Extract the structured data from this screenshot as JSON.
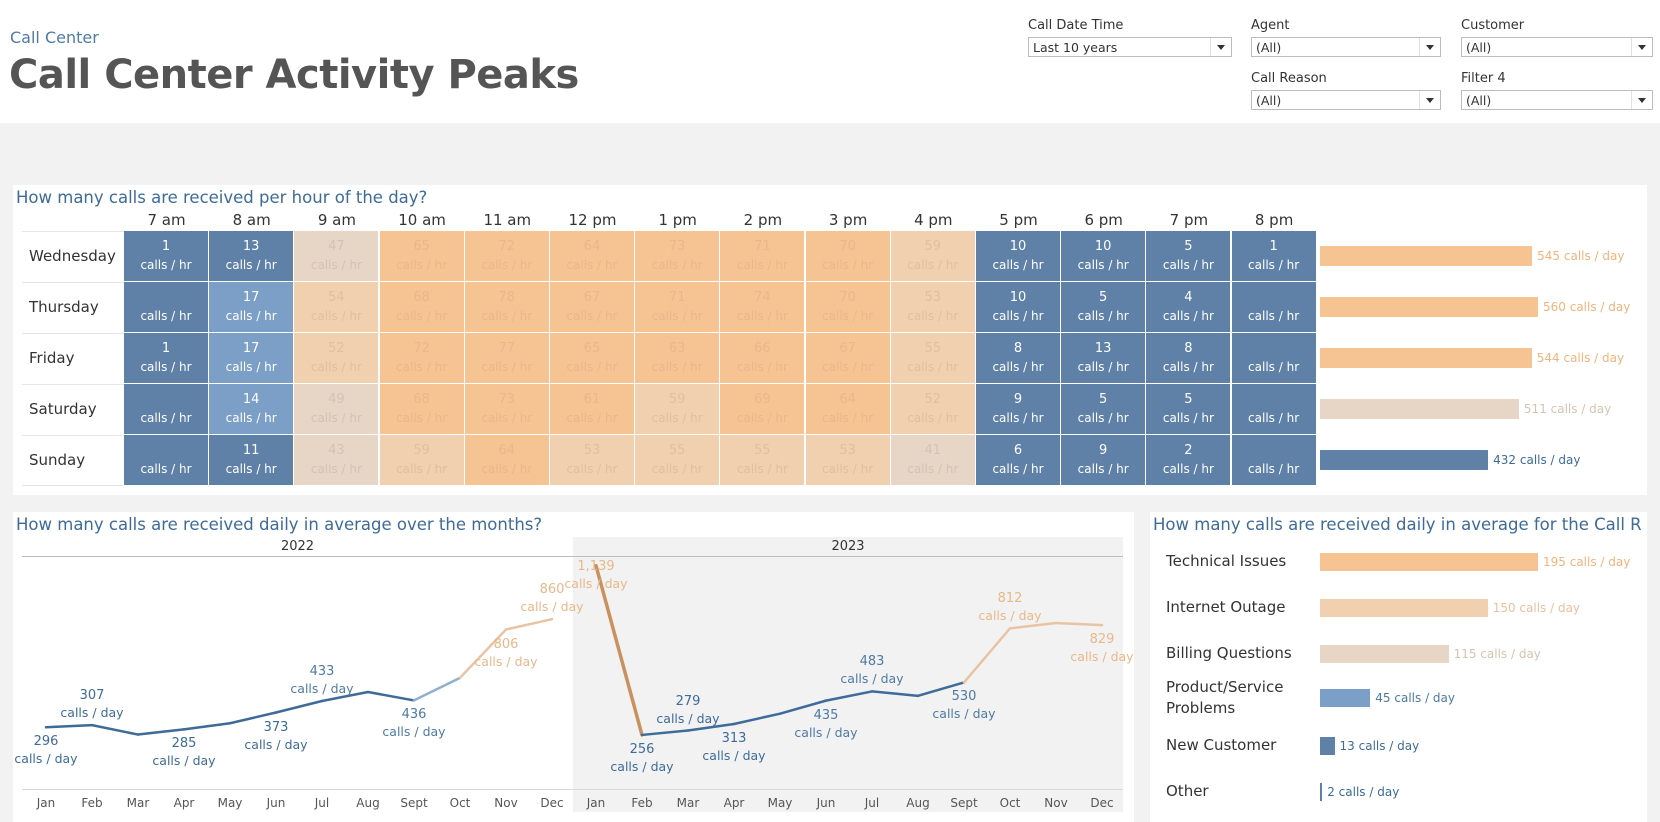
{
  "header": {
    "breadcrumb": "Call Center",
    "title": "Call Center Activity Peaks"
  },
  "filters": [
    {
      "label": "Call Date Time",
      "value": "Last 10 years"
    },
    {
      "label": "Agent",
      "value": "(All)"
    },
    {
      "label": "Customer",
      "value": "(All)"
    },
    {
      "label": "Call Reason",
      "value": "(All)"
    },
    {
      "label": "Filter 4",
      "value": "(All)"
    }
  ],
  "heatmap": {
    "title": "How many calls are received per hour of the day?",
    "hours": [
      "7 am",
      "8 am",
      "9 am",
      "10 am",
      "11 am",
      "12 pm",
      "1 pm",
      "2 pm",
      "3 pm",
      "4 pm",
      "5 pm",
      "6 pm",
      "7 pm",
      "8 pm"
    ],
    "unit": "calls / hr",
    "rows": [
      {
        "day": "Wednesday",
        "values": [
          1,
          13,
          47,
          65,
          72,
          64,
          73,
          71,
          70,
          59,
          10,
          10,
          5,
          1
        ],
        "total": 545,
        "total_label": "545 calls / day"
      },
      {
        "day": "Thursday",
        "values": [
          null,
          17,
          54,
          68,
          78,
          67,
          71,
          74,
          70,
          53,
          10,
          5,
          4,
          null
        ],
        "total": 560,
        "total_label": "560 calls / day"
      },
      {
        "day": "Friday",
        "values": [
          1,
          17,
          52,
          72,
          77,
          65,
          63,
          66,
          67,
          55,
          8,
          13,
          8,
          null
        ],
        "total": 544,
        "total_label": "544 calls / day"
      },
      {
        "day": "Saturday",
        "values": [
          null,
          14,
          49,
          68,
          73,
          61,
          59,
          69,
          64,
          52,
          9,
          5,
          5,
          null
        ],
        "total": 511,
        "total_label": "511 calls / day"
      },
      {
        "day": "Sunday",
        "values": [
          null,
          11,
          43,
          59,
          64,
          53,
          55,
          55,
          53,
          41,
          6,
          9,
          2,
          null
        ],
        "total": 432,
        "total_label": "432 calls / day"
      }
    ]
  },
  "monthly": {
    "title": "How many calls are received daily in average over the months?",
    "unit": "calls / day",
    "years": [
      "2022",
      "2023"
    ],
    "months": [
      "Jan",
      "Feb",
      "Mar",
      "Apr",
      "May",
      "Jun",
      "Jul",
      "Aug",
      "Sept",
      "Oct",
      "Nov",
      "Dec"
    ]
  },
  "chart_data": {
    "type": "line",
    "title": "How many calls are received daily in average over the months?",
    "x": [
      "Jan 2022",
      "Feb 2022",
      "Mar 2022",
      "Apr 2022",
      "May 2022",
      "Jun 2022",
      "Jul 2022",
      "Aug 2022",
      "Sept 2022",
      "Oct 2022",
      "Nov 2022",
      "Dec 2022",
      "Jan 2023",
      "Feb 2023",
      "Mar 2023",
      "Apr 2023",
      "May 2023",
      "Jun 2023",
      "Jul 2023",
      "Aug 2023",
      "Sept 2023",
      "Oct 2023",
      "Nov 2023",
      "Dec 2023"
    ],
    "series": [
      {
        "values": [
          296,
          307,
          258,
          285,
          317,
          373,
          433,
          480,
          436,
          554,
          806,
          860,
          1139,
          256,
          279,
          313,
          367,
          435,
          483,
          460,
          530,
          812,
          840,
          829
        ]
      }
    ],
    "labels": [
      {
        "i": 0,
        "n": "296",
        "u": "calls / day"
      },
      {
        "i": 1,
        "n": "307",
        "u": "calls / day"
      },
      {
        "i": 3,
        "n": "285",
        "u": "calls / day"
      },
      {
        "i": 5,
        "n": "373",
        "u": "calls / day"
      },
      {
        "i": 6,
        "n": "433",
        "u": "calls / day"
      },
      {
        "i": 8,
        "n": "436",
        "u": "calls / day"
      },
      {
        "i": 10,
        "n": "806",
        "u": "calls / day"
      },
      {
        "i": 11,
        "n": "860",
        "u": "calls / day"
      },
      {
        "i": 12,
        "n": "1,139",
        "u": "calls / day"
      },
      {
        "i": 13,
        "n": "256",
        "u": "calls / day"
      },
      {
        "i": 14,
        "n": "279",
        "u": "calls / day"
      },
      {
        "i": 15,
        "n": "313",
        "u": "calls / day"
      },
      {
        "i": 17,
        "n": "435",
        "u": "calls / day"
      },
      {
        "i": 18,
        "n": "483",
        "u": "calls / day"
      },
      {
        "i": 20,
        "n": "530",
        "u": "calls / day"
      },
      {
        "i": 21,
        "n": "812",
        "u": "calls / day"
      },
      {
        "i": 23,
        "n": "829",
        "u": "calls / day"
      }
    ],
    "xlabel": "",
    "ylabel": "",
    "ylim": [
      0,
      1200
    ],
    "grid": false
  },
  "reasons": {
    "title": "How many calls are received daily in average for the Call R",
    "items": [
      {
        "label": "Technical Issues",
        "value": 195,
        "value_label": "195 calls / day"
      },
      {
        "label": "Internet Outage",
        "value": 150,
        "value_label": "150 calls / day"
      },
      {
        "label": "Billing Questions",
        "value": 115,
        "value_label": "115 calls / day"
      },
      {
        "label": "Product/Service Problems",
        "value": 45,
        "value_label": "45 calls / day"
      },
      {
        "label": "New Customer",
        "value": 13,
        "value_label": "13 calls / day"
      },
      {
        "label": "Other",
        "value": 2,
        "value_label": "2 calls / day"
      }
    ]
  }
}
